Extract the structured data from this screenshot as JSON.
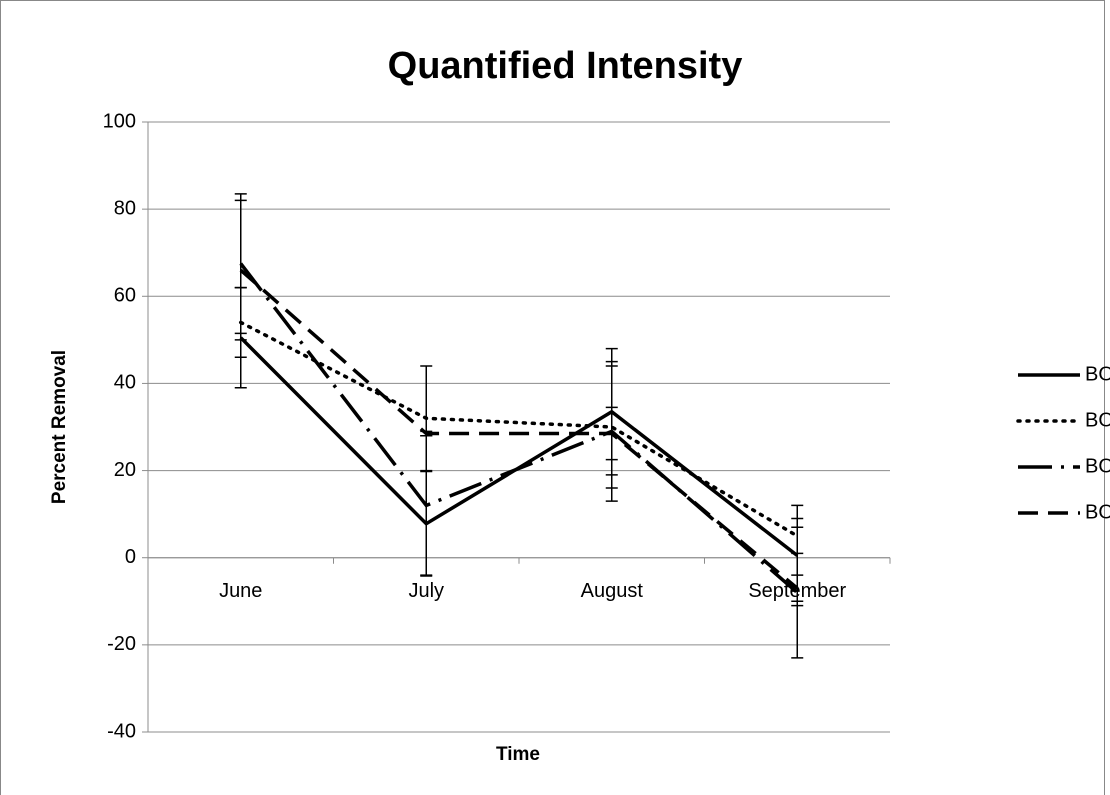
{
  "chart_data": {
    "type": "line",
    "title": "Quantified Intensity",
    "y_label": "Percent Removal",
    "x_label": "Time",
    "categories": [
      "June",
      "July",
      "August",
      "September"
    ],
    "ylim": [
      -40,
      100
    ],
    "yticks": [
      -40,
      -20,
      0,
      20,
      40,
      60,
      80,
      100
    ],
    "grid": true,
    "legend": "right",
    "series": [
      {
        "name": "BOGRm",
        "color": "#000000",
        "style": "solid",
        "values": [
          50.5,
          7.8,
          33.5,
          0.5
        ],
        "errors": [
          11.5,
          12,
          14.5,
          11.5
        ]
      },
      {
        "name": "BOGRu",
        "color": "#000000",
        "style": "dotted",
        "values": [
          54,
          32,
          30,
          5
        ],
        "errors": [
          8,
          12,
          14,
          4
        ]
      },
      {
        "name": "BOISm",
        "color": "#000000",
        "style": "long-dash-dot",
        "values": [
          67.5,
          12,
          29,
          -8
        ],
        "errors": [
          16,
          16,
          16,
          15
        ]
      },
      {
        "name": "BOISu",
        "color": "#000000",
        "style": "dash",
        "values": [
          66,
          28.5,
          28.5,
          -7
        ],
        "errors": [
          16,
          0.5,
          6,
          3
        ]
      }
    ]
  }
}
